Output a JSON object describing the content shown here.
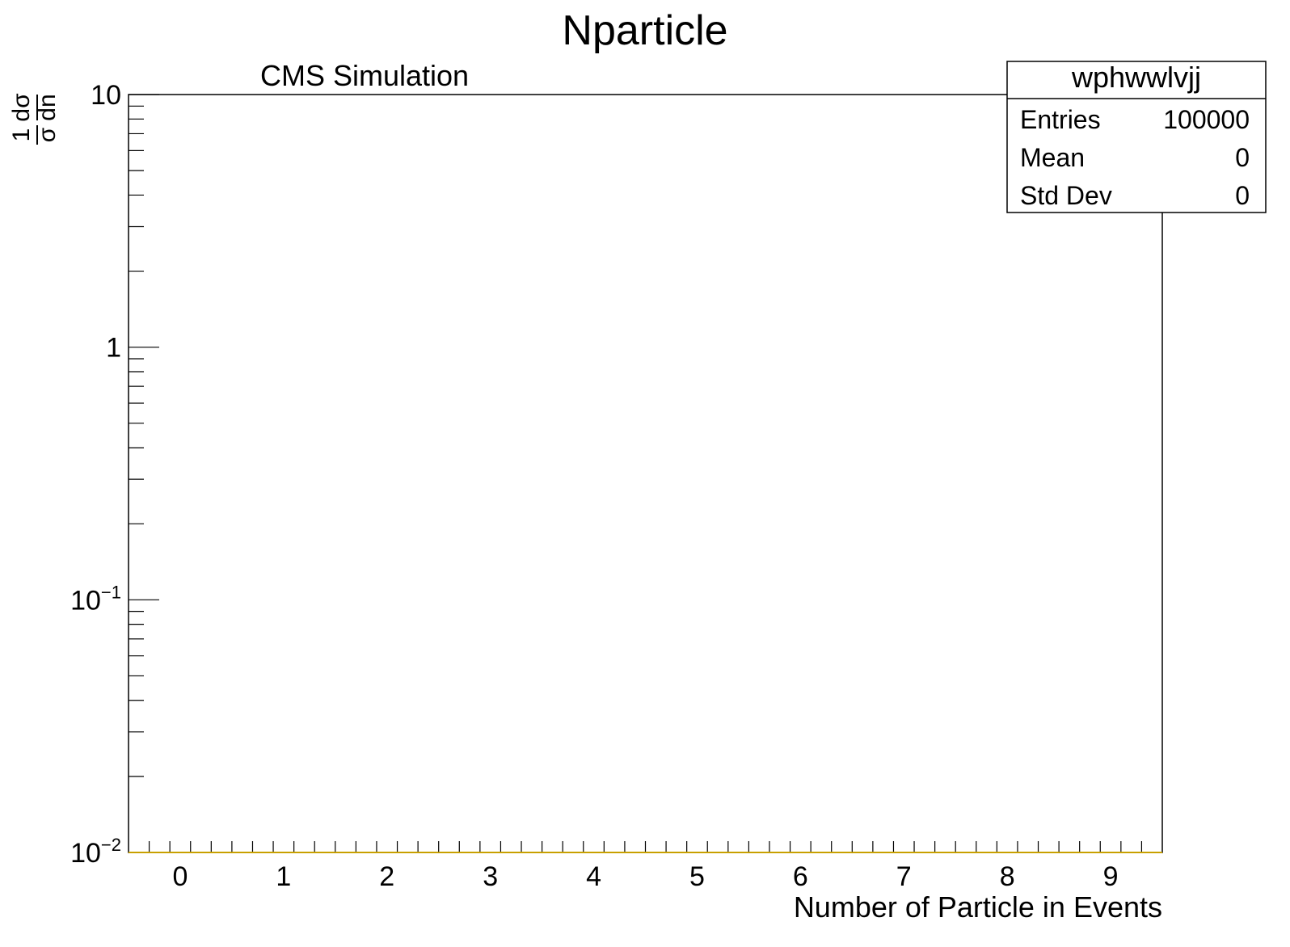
{
  "chart_data": {
    "type": "bar",
    "title": "Nparticle",
    "annotation": "CMS Simulation",
    "xlabel": "Number of Particle in Events",
    "ylabel": {
      "numerator": "1",
      "denominator": "σ",
      "d_numerator": "dσ",
      "d_denominator": "dn"
    },
    "xlim": [
      -0.5,
      9.5
    ],
    "ylim": [
      0.01,
      10
    ],
    "y_scale": "log",
    "x_ticks": [
      "0",
      "1",
      "2",
      "3",
      "4",
      "5",
      "6",
      "7",
      "8",
      "9"
    ],
    "y_ticks": [
      {
        "value": 10,
        "base": "10",
        "exp": ""
      },
      {
        "value": 1,
        "base": "1",
        "exp": ""
      },
      {
        "value": 0.1,
        "base": "10",
        "exp": "−1"
      },
      {
        "value": 0.01,
        "base": "10",
        "exp": "−2"
      }
    ],
    "series": [
      {
        "name": "wphwwlvjj",
        "color": "#c8a000",
        "values": [
          0,
          0,
          0,
          0,
          0,
          0,
          0,
          0,
          0,
          0
        ]
      }
    ],
    "grid": false,
    "legend": "top-right",
    "stats_box": {
      "title": "wphwwlvjj",
      "rows": [
        {
          "label": "Entries",
          "value": "100000"
        },
        {
          "label": "Mean",
          "value": "0"
        },
        {
          "label": "Std Dev",
          "value": "0"
        }
      ]
    }
  }
}
